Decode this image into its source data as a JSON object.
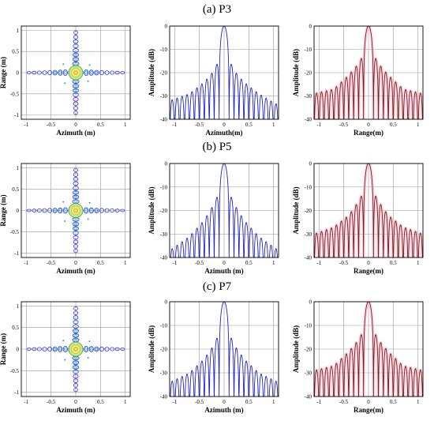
{
  "rows": [
    {
      "title": "(a) P3"
    },
    {
      "title": "(b) P5"
    },
    {
      "title": "(c) P7"
    }
  ],
  "chart_data": [
    {
      "type": "contour",
      "panel": "(a) P3 contour",
      "xlabel": "Azimuth (m)",
      "ylabel": "Range (m)",
      "xlim": [
        -1.1,
        1.1
      ],
      "ylim": [
        -1.1,
        1.1
      ],
      "xticks": [
        -1,
        -0.5,
        0,
        0.5,
        1
      ],
      "xtick_labels": [
        "-1",
        "-0.5",
        "0",
        "0.5",
        "1"
      ],
      "yticks": [
        -1,
        -0.5,
        0,
        0.5,
        1
      ],
      "ytick_labels": [
        "-1",
        "-0.5",
        "0",
        "0.5",
        "1"
      ],
      "grid": true
    },
    {
      "type": "line",
      "panel": "(a) P3 azimuth profile",
      "xlabel": "Azimuth(m)",
      "ylabel": "Amplitude (dB)",
      "xlim": [
        -1.1,
        1.1
      ],
      "ylim": [
        -40,
        0
      ],
      "xticks": [
        -1,
        -0.5,
        0,
        0.5,
        1
      ],
      "xtick_labels": [
        "-1",
        "-0.5",
        "0",
        "0.5",
        "1"
      ],
      "yticks": [
        0,
        -10,
        -20,
        -30,
        -40
      ],
      "ytick_labels": [
        "0",
        "-10",
        "-20",
        "-30",
        "-40"
      ],
      "series": [
        {
          "color": "#1f22c8",
          "mainlobe_width_m": 0.1,
          "sidelobe_spacing_m": 0.1,
          "envelope": {
            "x": [
              -1.1,
              -0.7,
              -0.4,
              -0.2,
              -0.1,
              0,
              0.1,
              0.2,
              0.4,
              0.7,
              1.1
            ],
            "y": [
              -32,
              -29,
              -24,
              -19,
              -14,
              0,
              -14,
              -19,
              -24,
              -29,
              -34
            ]
          }
        }
      ],
      "grid": true
    },
    {
      "type": "line",
      "panel": "(a) P3 range profile",
      "xlabel": "Range(m)",
      "ylabel": "Amplitude (dB)",
      "xlim": [
        -1.1,
        1.1
      ],
      "ylim": [
        -40,
        0
      ],
      "xticks": [
        -1,
        -0.5,
        0,
        0.5,
        1
      ],
      "xtick_labels": [
        "-1",
        "-0.5",
        "0",
        "0.5",
        "1"
      ],
      "yticks": [
        0,
        -10,
        -20,
        -30,
        -40
      ],
      "ytick_labels": [
        "0",
        "-10",
        "-20",
        "-30",
        "-40"
      ],
      "series": [
        {
          "color": "#7a1f12",
          "mainlobe_width_m": 0.1,
          "sidelobe_spacing_m": 0.1,
          "envelope": {
            "x": [
              -1.1,
              -0.7,
              -0.4,
              -0.2,
              -0.1,
              0,
              0.1,
              0.2,
              0.4,
              0.7,
              1.1
            ],
            "y": [
              -29,
              -27,
              -21,
              -16,
              -12,
              0,
              -12,
              -16,
              -21,
              -27,
              -29
            ]
          }
        }
      ],
      "grid": true
    },
    {
      "type": "contour",
      "panel": "(b) P5 contour",
      "xlabel": "Azimuth (m)",
      "ylabel": "Range (m)",
      "xlim": [
        -1.1,
        1.1
      ],
      "ylim": [
        -1.1,
        1.1
      ],
      "xticks": [
        -1,
        -0.5,
        0,
        0.5,
        1
      ],
      "xtick_labels": [
        "-1",
        "-0.5",
        "0",
        "0.5",
        "1"
      ],
      "yticks": [
        -1,
        -0.5,
        0,
        0.5,
        1
      ],
      "ytick_labels": [
        "-1",
        "-0.5",
        "0",
        "0.5",
        "1"
      ],
      "grid": true
    },
    {
      "type": "line",
      "panel": "(b) P5 azimuth profile",
      "xlabel": "Azimuth (m)",
      "ylabel": "Amplitude (dB)",
      "xlim": [
        -1.1,
        1.1
      ],
      "ylim": [
        -40,
        0
      ],
      "xticks": [
        -1,
        -0.5,
        0,
        0.5,
        1
      ],
      "xtick_labels": [
        "-1",
        "-0.5",
        "0",
        "0.5",
        "1"
      ],
      "yticks": [
        0,
        -10,
        -20,
        -30,
        -40
      ],
      "ytick_labels": [
        "0",
        "-10",
        "-20",
        "-30",
        "-40"
      ],
      "series": [
        {
          "color": "#1f22c8",
          "mainlobe_width_m": 0.1,
          "sidelobe_spacing_m": 0.1,
          "envelope": {
            "x": [
              -1.1,
              -0.7,
              -0.4,
              -0.2,
              -0.1,
              0,
              0.1,
              0.2,
              0.4,
              0.7,
              1.1
            ],
            "y": [
              -37,
              -31,
              -24,
              -17,
              -12,
              0,
              -12,
              -17,
              -24,
              -31,
              -37
            ]
          }
        }
      ],
      "grid": true
    },
    {
      "type": "line",
      "panel": "(b) P5 range profile",
      "xlabel": "Range(m)",
      "ylabel": "Amplitude (dB)",
      "xlim": [
        -1.1,
        1.1
      ],
      "ylim": [
        -40,
        0
      ],
      "xticks": [
        -1,
        -0.5,
        0,
        0.5,
        1
      ],
      "xtick_labels": [
        "-1",
        "-0.5",
        "0",
        "0.5",
        "1"
      ],
      "yticks": [
        0,
        -10,
        -20,
        -30,
        -40
      ],
      "ytick_labels": [
        "0",
        "-10",
        "-20",
        "-30",
        "-40"
      ],
      "series": [
        {
          "color": "#7a1f12",
          "mainlobe_width_m": 0.1,
          "sidelobe_spacing_m": 0.1,
          "envelope": {
            "x": [
              -1.1,
              -0.7,
              -0.4,
              -0.2,
              -0.1,
              0,
              0.1,
              0.2,
              0.4,
              0.7,
              1.1
            ],
            "y": [
              -30,
              -27,
              -22,
              -16,
              -12,
              0,
              -12,
              -16,
              -22,
              -27,
              -30
            ]
          }
        }
      ],
      "grid": true
    },
    {
      "type": "contour",
      "panel": "(c) P7 contour",
      "xlabel": "Azimuth (m)",
      "ylabel": "Range (m)",
      "xlim": [
        -1.1,
        1.1
      ],
      "ylim": [
        -1.1,
        1.1
      ],
      "xticks": [
        -1,
        -0.5,
        0,
        0.5,
        1
      ],
      "xtick_labels": [
        "-1",
        "-0.5",
        "0",
        "0.5",
        "1"
      ],
      "yticks": [
        -1,
        -0.5,
        0,
        0.5,
        1
      ],
      "ytick_labels": [
        "-1",
        "-0.5",
        "0",
        "0.5",
        "1"
      ],
      "grid": true
    },
    {
      "type": "line",
      "panel": "(c) P7 azimuth profile",
      "xlabel": "Azimuth (m)",
      "ylabel": "Amplitude (dB)",
      "xlim": [
        -1.1,
        1.1
      ],
      "ylim": [
        -40,
        0
      ],
      "xticks": [
        -1,
        -0.5,
        0,
        0.5,
        1
      ],
      "xtick_labels": [
        "-1",
        "-0.5",
        "0",
        "0.5",
        "1"
      ],
      "yticks": [
        0,
        -10,
        -20,
        -30,
        -40
      ],
      "ytick_labels": [
        "0",
        "-10",
        "-20",
        "-30",
        "-40"
      ],
      "series": [
        {
          "color": "#1f22c8",
          "mainlobe_width_m": 0.1,
          "sidelobe_spacing_m": 0.1,
          "envelope": {
            "x": [
              -1.1,
              -0.7,
              -0.4,
              -0.2,
              -0.1,
              0,
              0.1,
              0.2,
              0.4,
              0.7,
              1.1
            ],
            "y": [
              -34,
              -30,
              -24,
              -18,
              -13,
              0,
              -13,
              -18,
              -24,
              -30,
              -34
            ]
          }
        }
      ],
      "grid": true
    },
    {
      "type": "line",
      "panel": "(c) P7 range profile",
      "xlabel": "Range(m)",
      "ylabel": "Amplitude (dB)",
      "xlim": [
        -1.1,
        1.1
      ],
      "ylim": [
        -40,
        0
      ],
      "xticks": [
        -1,
        -0.5,
        0,
        0.5,
        1
      ],
      "xtick_labels": [
        "-1",
        "-0.5",
        "0",
        "0.5",
        "1"
      ],
      "yticks": [
        0,
        -10,
        -20,
        -30,
        -40
      ],
      "ytick_labels": [
        "0",
        "-10",
        "-20",
        "-30",
        "-40"
      ],
      "series": [
        {
          "color": "#7a1f12",
          "mainlobe_width_m": 0.1,
          "sidelobe_spacing_m": 0.1,
          "envelope": {
            "x": [
              -1.1,
              -0.7,
              -0.4,
              -0.2,
              -0.1,
              0,
              0.1,
              0.2,
              0.4,
              0.7,
              1.1
            ],
            "y": [
              -29,
              -27,
              -21,
              -16,
              -12,
              0,
              -12,
              -16,
              -21,
              -27,
              -29
            ]
          }
        }
      ],
      "grid": true
    }
  ]
}
